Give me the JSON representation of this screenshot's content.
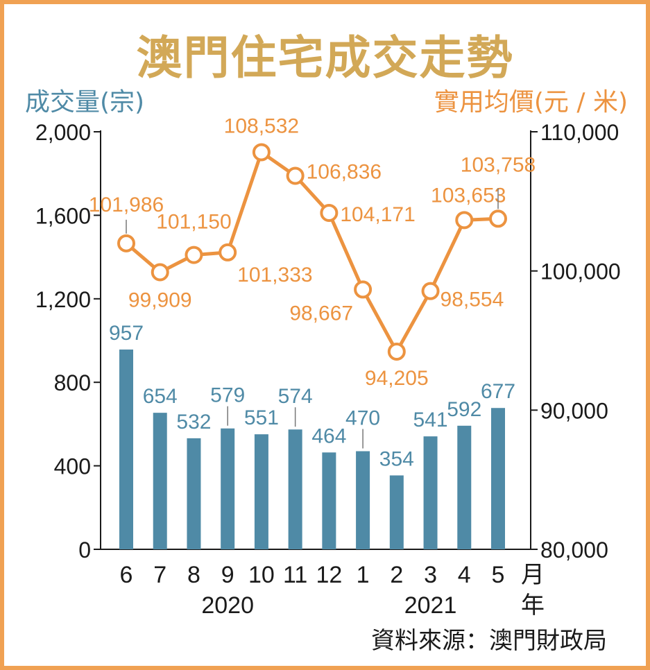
{
  "title": "澳門住宅成交走勢",
  "left_axis_label": "成交量(宗)",
  "right_axis_label": "實用均價(元 / 米)",
  "source": "資料來源：澳門財政局",
  "colors": {
    "bar": "#4f8aa6",
    "line": "#ec9340",
    "title": "#d2a857",
    "frame": "#f0a153",
    "axis": "#1a1a1a"
  },
  "chart_data": {
    "type": "bar+line",
    "categories": [
      "6",
      "7",
      "8",
      "9",
      "10",
      "11",
      "12",
      "1",
      "2",
      "3",
      "4",
      "5"
    ],
    "x_unit_label": "月",
    "year_unit_label": "年",
    "year_labels": [
      {
        "label": "2020",
        "span": [
          "6",
          "12"
        ]
      },
      {
        "label": "2021",
        "span": [
          "1",
          "5"
        ]
      }
    ],
    "bar_series": {
      "axis": "left",
      "values": [
        957,
        654,
        532,
        579,
        551,
        574,
        464,
        470,
        354,
        541,
        592,
        677
      ],
      "value_labels": [
        "957",
        "654",
        "532",
        "579",
        "551",
        "574",
        "464",
        "470",
        "354",
        "541",
        "592",
        "677"
      ]
    },
    "line_series": {
      "axis": "right",
      "values": [
        101986,
        99909,
        101150,
        101333,
        108532,
        106836,
        104171,
        98667,
        94205,
        98554,
        103653,
        103758
      ],
      "value_labels": [
        "101,986",
        "99,909",
        "101,150",
        "101,333",
        "108,532",
        "106,836",
        "104,171",
        "98,667",
        "94,205",
        "98,554",
        "103,653",
        "103,758"
      ]
    },
    "y_left": {
      "range": [
        0,
        2000
      ],
      "ticks": [
        0,
        400,
        800,
        1200,
        1600,
        2000
      ],
      "tick_labels": [
        "0",
        "400",
        "800",
        "1,200",
        "1,600",
        "2,000"
      ]
    },
    "y_right": {
      "range": [
        80000,
        110000
      ],
      "ticks": [
        80000,
        90000,
        100000,
        110000
      ],
      "tick_labels": [
        "80,000",
        "90,000",
        "100,000",
        "110,000"
      ]
    },
    "grid": false
  }
}
